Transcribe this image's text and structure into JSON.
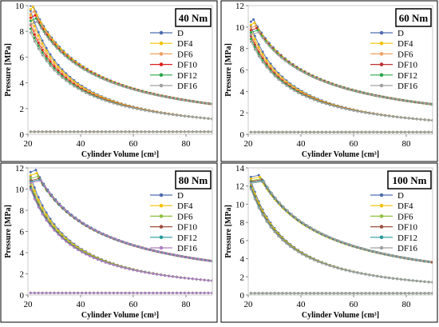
{
  "chart_data": [
    {
      "type": "line",
      "title": "40 Nm",
      "xlabel": "Cylinder Volume [cm³]",
      "ylabel": "Pressure [MPa]",
      "xlim": [
        20,
        90
      ],
      "ylim": [
        0,
        10
      ],
      "xticks": [
        20,
        40,
        60,
        80
      ],
      "yticks": [
        0,
        2,
        4,
        6,
        8,
        10
      ],
      "grid": false,
      "legend": "right",
      "peak": [
        10.2,
        9.9,
        9.55,
        9.25,
        9.0,
        8.75
      ],
      "peak_volume": 21.5,
      "expansion_end": 2.35,
      "compression_start": 1.2,
      "low_level": 0.2,
      "series": [
        {
          "name": "D",
          "color": "#4f6db0"
        },
        {
          "name": "DF4",
          "color": "#f2c200"
        },
        {
          "name": "DF6",
          "color": "#f0a060"
        },
        {
          "name": "DF10",
          "color": "#e02020"
        },
        {
          "name": "DF12",
          "color": "#2aa74a"
        },
        {
          "name": "DF16",
          "color": "#a0a0a0"
        }
      ]
    },
    {
      "type": "line",
      "title": "60 Nm",
      "xlabel": "Cylinder Volume [cm³]",
      "ylabel": "Pressure [MPa]",
      "xlim": [
        20,
        90
      ],
      "ylim": [
        0,
        12
      ],
      "xticks": [
        20,
        40,
        60,
        80
      ],
      "yticks": [
        0,
        2,
        4,
        6,
        8,
        10,
        12
      ],
      "grid": false,
      "legend": "right",
      "peak": [
        10.7,
        10.4,
        10.1,
        9.9,
        9.7,
        9.5
      ],
      "peak_volume": 22,
      "expansion_end": 2.8,
      "compression_start": 1.3,
      "low_level": 0.2,
      "series": [
        {
          "name": "D",
          "color": "#4f6db0"
        },
        {
          "name": "DF4",
          "color": "#f2c200"
        },
        {
          "name": "DF6",
          "color": "#f0a060"
        },
        {
          "name": "DF10",
          "color": "#c03030"
        },
        {
          "name": "DF12",
          "color": "#2aa74a"
        },
        {
          "name": "DF16",
          "color": "#a0a0a0"
        }
      ]
    },
    {
      "type": "line",
      "title": "80 Nm",
      "xlabel": "Cylinder Volume [cm³]",
      "ylabel": "Pressure [MPa]",
      "xlim": [
        20,
        90
      ],
      "ylim": [
        0,
        12
      ],
      "xticks": [
        20,
        40,
        60,
        80
      ],
      "yticks": [
        0,
        2,
        4,
        6,
        8,
        10,
        12
      ],
      "grid": false,
      "legend": "right",
      "peak": [
        11.8,
        11.5,
        11.2,
        11.0,
        10.9,
        10.8
      ],
      "peak_volume": 23,
      "expansion_end": 3.2,
      "compression_start": 1.35,
      "low_level": 0.2,
      "series": [
        {
          "name": "D",
          "color": "#4f6db0"
        },
        {
          "name": "DF4",
          "color": "#f2c200"
        },
        {
          "name": "DF6",
          "color": "#8fc040"
        },
        {
          "name": "DF10",
          "color": "#a05040"
        },
        {
          "name": "DF12",
          "color": "#2a9a9a"
        },
        {
          "name": "DF16",
          "color": "#b080c0"
        }
      ]
    },
    {
      "type": "line",
      "title": "100 Nm",
      "xlabel": "Cylinder Volume [cm³]",
      "ylabel": "Pressure [MPa]",
      "xlim": [
        20,
        90
      ],
      "ylim": [
        0,
        14
      ],
      "xticks": [
        20,
        40,
        60,
        80
      ],
      "yticks": [
        0,
        2,
        4,
        6,
        8,
        10,
        12,
        14
      ],
      "grid": false,
      "legend": "right",
      "peak": [
        13.2,
        13.0,
        12.8,
        12.7,
        12.6,
        12.5
      ],
      "peak_volume": 24,
      "expansion_end": 3.6,
      "compression_start": 1.4,
      "low_level": 0.2,
      "series": [
        {
          "name": "D",
          "color": "#4f6db0"
        },
        {
          "name": "DF4",
          "color": "#f2c200"
        },
        {
          "name": "DF6",
          "color": "#8fc040"
        },
        {
          "name": "DF10",
          "color": "#a05040"
        },
        {
          "name": "DF12",
          "color": "#2a9a9a"
        },
        {
          "name": "DF16",
          "color": "#a0a0a0"
        }
      ]
    }
  ]
}
